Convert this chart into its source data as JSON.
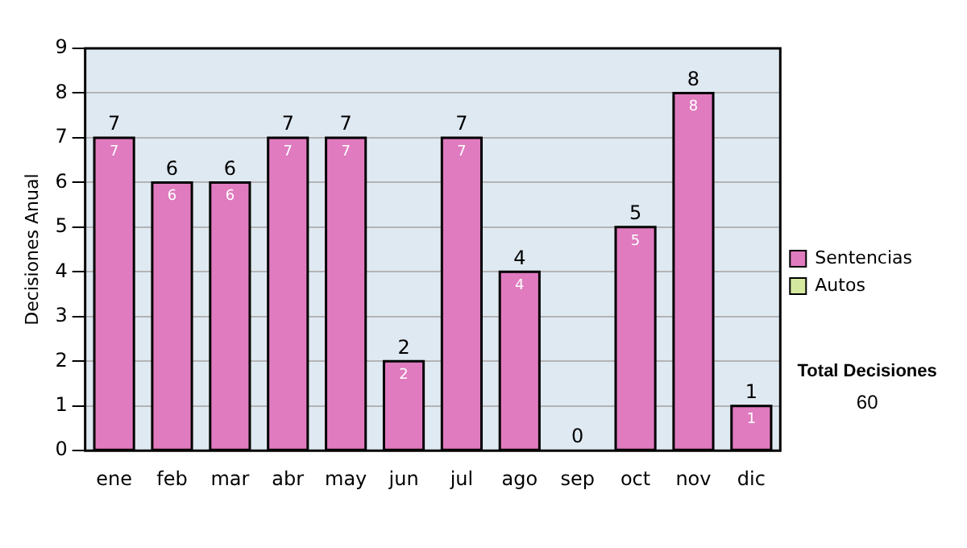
{
  "chart_data": {
    "type": "bar",
    "stacked": true,
    "ylabel": "Decisiones Anual",
    "categories": [
      "ene",
      "feb",
      "mar",
      "abr",
      "may",
      "jun",
      "jul",
      "ago",
      "sep",
      "oct",
      "nov",
      "dic"
    ],
    "series": [
      {
        "name": "Sentencias",
        "color": "#e07bbf",
        "values": [
          7,
          6,
          6,
          7,
          7,
          2,
          7,
          4,
          0,
          5,
          8,
          1
        ],
        "value_labels": [
          "7",
          "6",
          "6",
          "7",
          "7",
          "2",
          "7",
          "4",
          null,
          "5",
          "8",
          "1"
        ]
      },
      {
        "name": "Autos",
        "color": "#d4e8a0",
        "values": [
          0,
          0,
          0,
          0,
          0,
          0,
          0,
          0,
          0,
          0,
          0,
          0
        ]
      }
    ],
    "totals": [
      "7",
      "6",
      "6",
      "7",
      "7",
      "2",
      "7",
      "4",
      "0",
      "5",
      "8",
      "1"
    ],
    "ylim": [
      0,
      9
    ],
    "yticks": [
      0,
      1,
      2,
      3,
      4,
      5,
      6,
      7,
      8,
      9
    ],
    "grid": "y",
    "legend": "right",
    "annotations": [
      "Total Decisiones",
      "60"
    ]
  }
}
